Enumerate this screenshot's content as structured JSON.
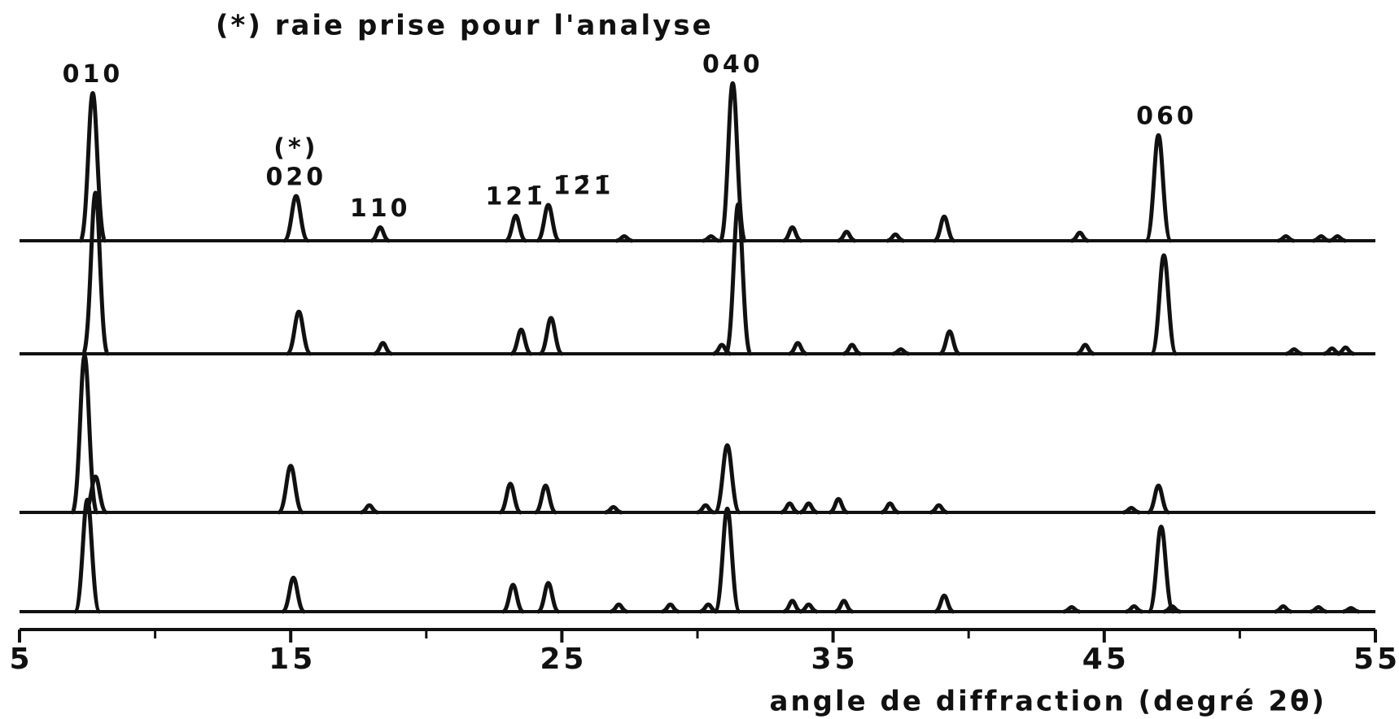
{
  "chart_data": {
    "type": "line",
    "title": "(*) raie prise pour l'analyse",
    "x_label": "angle de diffraction (degré 2θ)",
    "xlim": [
      5,
      55
    ],
    "xticks": [
      5,
      15,
      25,
      35,
      45,
      55
    ],
    "minor_xticks": [
      10,
      20,
      30,
      40,
      50
    ],
    "color": "#111111",
    "series": [
      {
        "x": [
          7.7,
          15.2,
          18.3,
          23.3,
          24.5,
          27.3,
          30.5,
          31.3,
          33.5,
          35.5,
          37.3,
          39.1,
          44.1,
          47.0,
          51.7,
          53.0,
          53.6
        ],
        "values": [
          165,
          50,
          15,
          28,
          40,
          5,
          5,
          176,
          15,
          10,
          7,
          27,
          9,
          118,
          5,
          5,
          5
        ]
      },
      {
        "x": [
          7.8,
          15.3,
          18.4,
          23.5,
          24.6,
          30.9,
          31.5,
          33.7,
          35.7,
          37.5,
          39.3,
          44.3,
          47.2,
          52.0,
          53.4,
          53.9
        ],
        "values": [
          180,
          47,
          12,
          27,
          40,
          10,
          167,
          12,
          10,
          5,
          25,
          10,
          110,
          5,
          6,
          7
        ]
      },
      {
        "x": [
          7.4,
          7.8,
          15.0,
          17.9,
          23.1,
          24.4,
          26.9,
          30.3,
          31.1,
          33.4,
          34.1,
          35.2,
          37.1,
          38.9,
          46.0,
          47.0
        ],
        "values": [
          175,
          40,
          52,
          8,
          32,
          30,
          6,
          8,
          75,
          10,
          10,
          15,
          10,
          8,
          5,
          30
        ]
      },
      {
        "x": [
          7.5,
          15.1,
          23.2,
          24.5,
          27.1,
          29.0,
          30.4,
          31.1,
          33.5,
          34.1,
          35.4,
          39.1,
          43.8,
          46.1,
          47.1,
          47.5,
          51.6,
          52.9,
          54.1
        ],
        "values": [
          125,
          38,
          30,
          32,
          8,
          8,
          8,
          115,
          12,
          8,
          12,
          18,
          5,
          6,
          95,
          6,
          6,
          5,
          4
        ]
      }
    ],
    "annotations": [
      {
        "text": "010",
        "x": 7.7
      },
      {
        "text": "020",
        "x": 15.2,
        "mark": "(*)"
      },
      {
        "text": "110",
        "x": 18.3
      },
      {
        "text": "121̄",
        "x": 23.3
      },
      {
        "text": "1̄2̄1̄",
        "x": 25.8
      },
      {
        "text": "040",
        "x": 31.3
      },
      {
        "text": "060",
        "x": 47.3
      }
    ]
  }
}
